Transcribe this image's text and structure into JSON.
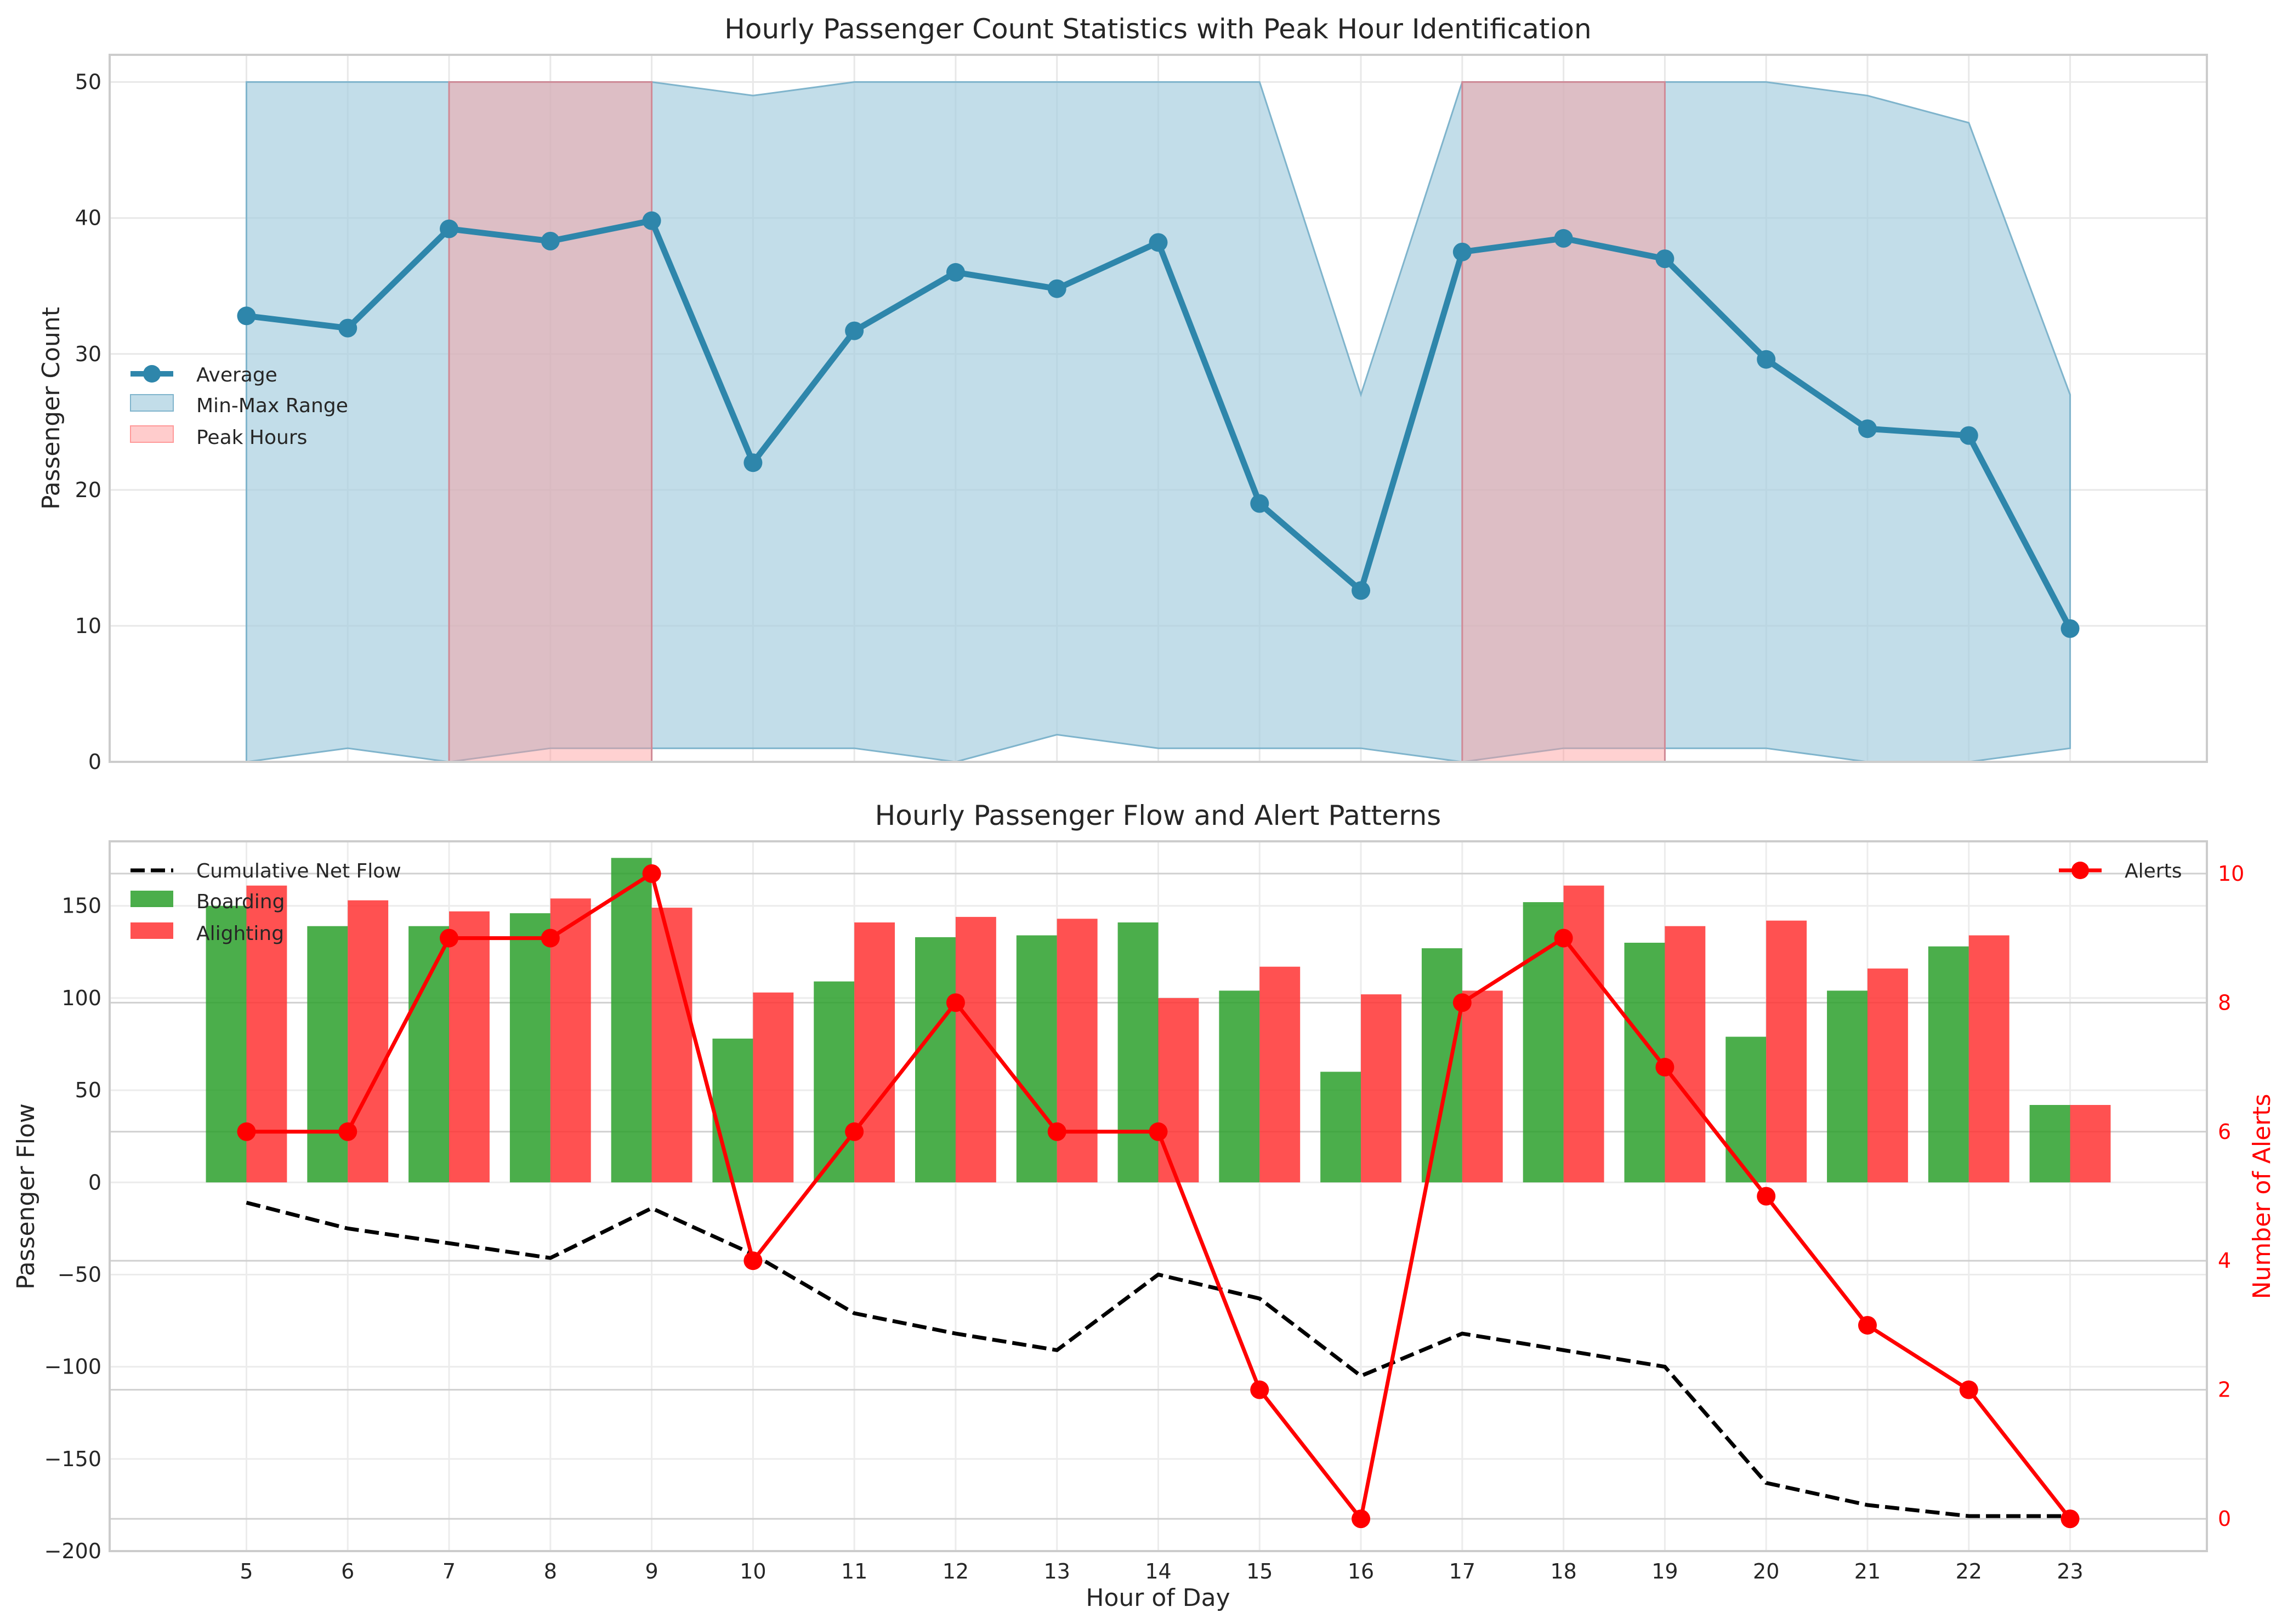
{
  "chart_data": [
    {
      "type": "line",
      "title": "Hourly Passenger Count Statistics with Peak Hour Identification",
      "xlabel": "",
      "ylabel": "Passenger Count",
      "xlim": [
        3.65,
        24.35
      ],
      "ylim": [
        0,
        52
      ],
      "yticks": [
        0,
        10,
        20,
        30,
        40,
        50
      ],
      "x": [
        5,
        6,
        7,
        8,
        9,
        10,
        11,
        12,
        13,
        14,
        15,
        16,
        17,
        18,
        19,
        20,
        21,
        22,
        23
      ],
      "series": [
        {
          "name": "Average",
          "color": "#2e86ab",
          "values": [
            32.8,
            31.9,
            39.2,
            38.3,
            39.8,
            22.0,
            31.7,
            36.0,
            34.8,
            38.2,
            19.0,
            12.6,
            37.5,
            38.5,
            37.0,
            29.6,
            24.5,
            24.0,
            9.8
          ]
        }
      ],
      "range": {
        "name": "Min-Max Range",
        "color": "#a8cfdf",
        "min": [
          0,
          1,
          0,
          1,
          1,
          1,
          1,
          0,
          2,
          1,
          1,
          1,
          0,
          1,
          1,
          1,
          0,
          0,
          1
        ],
        "max": [
          50,
          50,
          50,
          50,
          50,
          49,
          50,
          50,
          50,
          50,
          50,
          27,
          50,
          50,
          50,
          50,
          49,
          47,
          27
        ]
      },
      "peak_hours": {
        "name": "Peak Hours",
        "color": "#ff9999",
        "spans": [
          [
            7,
            9
          ],
          [
            17,
            19
          ]
        ]
      },
      "legend": [
        "Average",
        "Min-Max Range",
        "Peak Hours"
      ],
      "legend_position": "center-left",
      "grid": true
    },
    {
      "type": "bar",
      "title": "Hourly Passenger Flow and Alert Patterns",
      "xlabel": "Hour of Day",
      "ylabel": "Passenger Flow",
      "y2label": "Number of Alerts",
      "categories": [
        5,
        6,
        7,
        8,
        9,
        10,
        11,
        12,
        13,
        14,
        15,
        16,
        17,
        18,
        19,
        20,
        21,
        22,
        23
      ],
      "xlim": [
        3.65,
        24.35
      ],
      "ylim": [
        -200,
        185
      ],
      "yticks": [
        -200,
        -150,
        -100,
        -50,
        0,
        50,
        100,
        150
      ],
      "y2lim": [
        -0.5,
        10.5
      ],
      "y2ticks": [
        0,
        2,
        4,
        6,
        8,
        10
      ],
      "series": [
        {
          "name": "Boarding",
          "kind": "bar",
          "color": "#2ca02c",
          "values": [
            150,
            139,
            139,
            146,
            176,
            78,
            109,
            133,
            134,
            141,
            104,
            60,
            127,
            152,
            130,
            79,
            104,
            128,
            42
          ]
        },
        {
          "name": "Alighting",
          "kind": "bar",
          "color": "#ff3333",
          "values": [
            161,
            153,
            147,
            154,
            149,
            103,
            141,
            144,
            143,
            100,
            117,
            102,
            104,
            161,
            139,
            142,
            116,
            134,
            42
          ]
        },
        {
          "name": "Cumulative Net Flow",
          "kind": "line",
          "style": "dashed",
          "color": "#000000",
          "values": [
            -11,
            -25,
            -33,
            -41,
            -14,
            -39,
            -71,
            -82,
            -91,
            -50,
            -63,
            -105,
            -82,
            -91,
            -100,
            -163,
            -175,
            -181,
            -181
          ]
        },
        {
          "name": "Alerts",
          "kind": "line",
          "axis": "y2",
          "color": "#ff0000",
          "values": [
            6,
            6,
            9,
            9,
            10,
            4,
            6,
            8,
            6,
            6,
            2,
            0,
            8,
            9,
            7,
            5,
            3,
            2,
            0
          ]
        }
      ],
      "legend_left": [
        "Cumulative Net Flow",
        "Boarding",
        "Alighting"
      ],
      "legend_right": [
        "Alerts"
      ],
      "grid": true
    }
  ]
}
